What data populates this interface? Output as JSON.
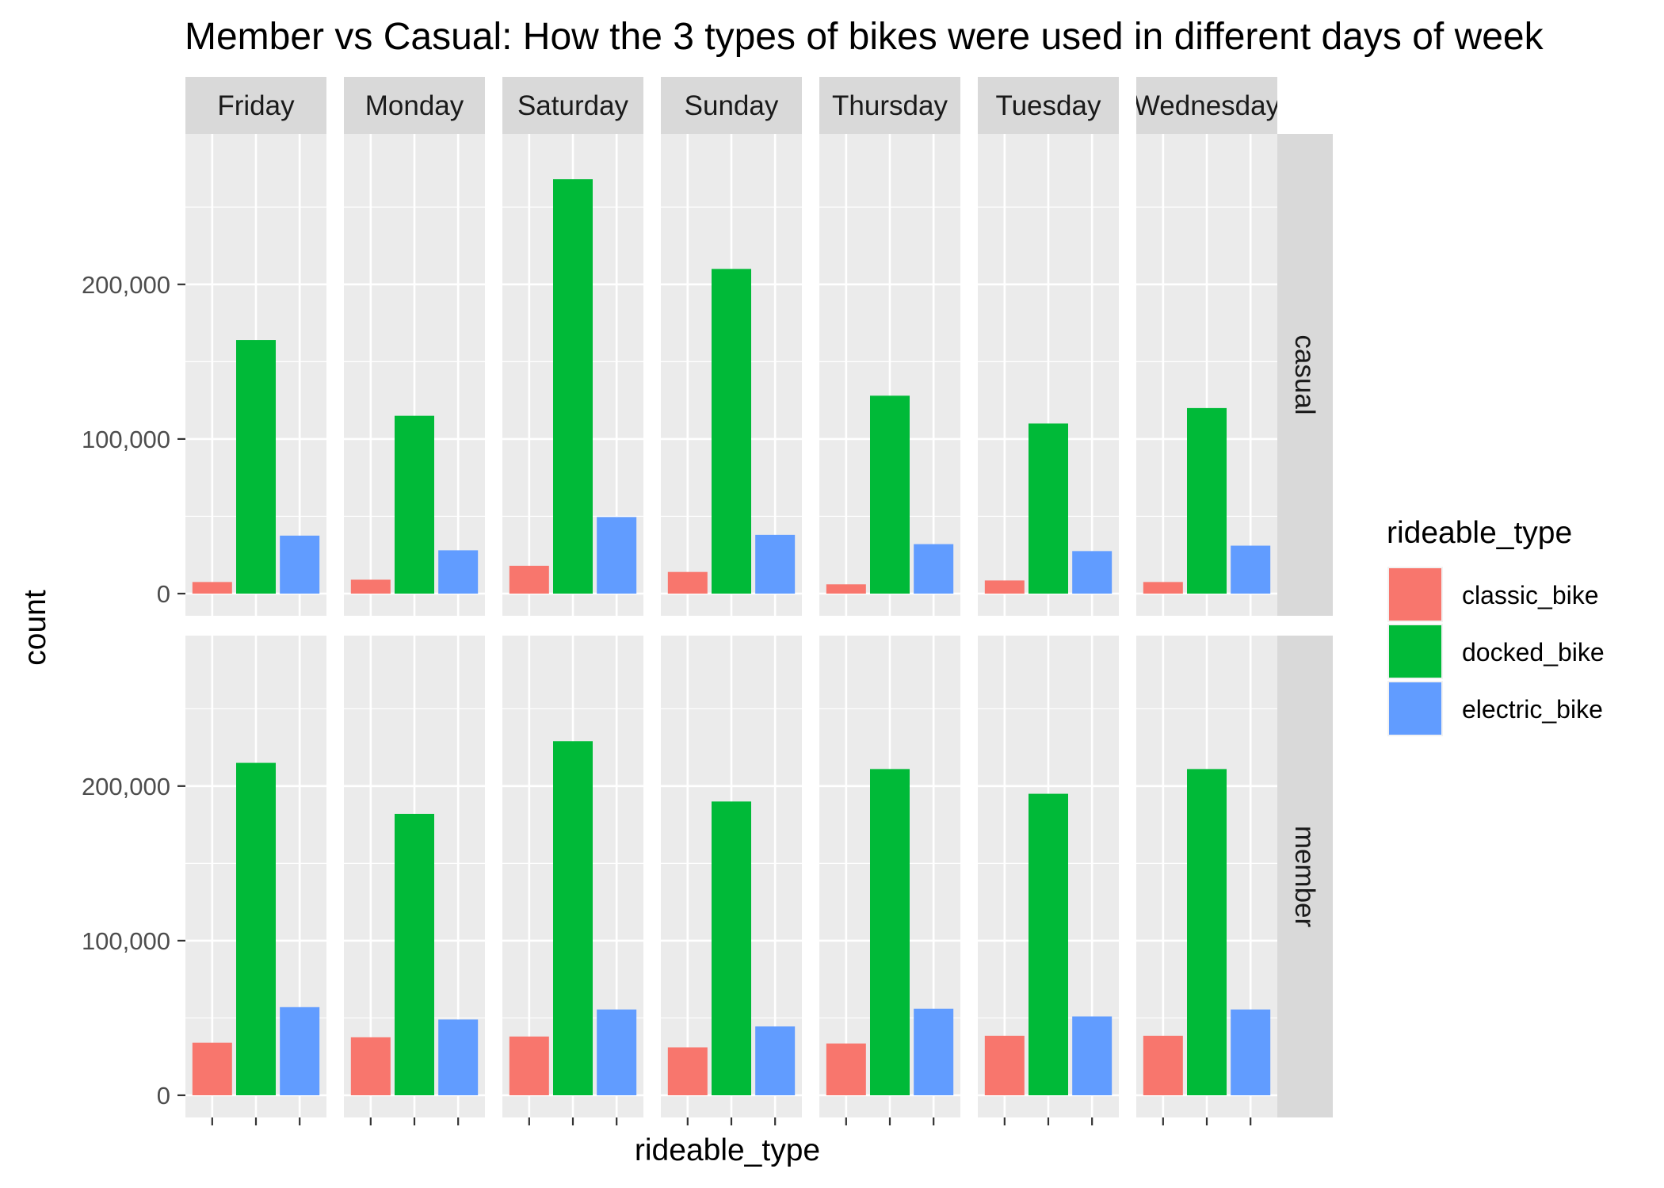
{
  "chart_data": {
    "type": "bar",
    "title": "Member vs Casual: How the 3 types of bikes were used in different days of week",
    "xlabel": "rideable_type",
    "ylabel": "count",
    "ylim": [
      0,
      285000
    ],
    "yticks": [
      0,
      100000,
      200000
    ],
    "ytick_labels": [
      "0",
      "100,000",
      "200,000"
    ],
    "grid": true,
    "legend_position": "right",
    "legend_title": "rideable_type",
    "categories": [
      "classic_bike",
      "docked_bike",
      "electric_bike"
    ],
    "colors": [
      "#F8766D",
      "#00BA38",
      "#619CFF"
    ],
    "facet_columns": [
      "Friday",
      "Monday",
      "Saturday",
      "Sunday",
      "Thursday",
      "Tuesday",
      "Wednesday"
    ],
    "facet_rows": [
      "casual",
      "member"
    ],
    "values": {
      "casual": {
        "Friday": [
          7500,
          164000,
          37500
        ],
        "Monday": [
          9000,
          115000,
          28000
        ],
        "Saturday": [
          18000,
          268000,
          49500
        ],
        "Sunday": [
          14000,
          210000,
          38000
        ],
        "Thursday": [
          6000,
          128000,
          32000
        ],
        "Tuesday": [
          8500,
          110000,
          27500
        ],
        "Wednesday": [
          7500,
          120000,
          31000
        ]
      },
      "member": {
        "Friday": [
          34000,
          215000,
          57000
        ],
        "Monday": [
          37500,
          182000,
          49000
        ],
        "Saturday": [
          38000,
          229000,
          55500
        ],
        "Sunday": [
          31000,
          190000,
          44500
        ],
        "Thursday": [
          33500,
          211000,
          56000
        ],
        "Tuesday": [
          38500,
          195000,
          51000
        ],
        "Wednesday": [
          38500,
          211000,
          55500
        ]
      }
    }
  }
}
